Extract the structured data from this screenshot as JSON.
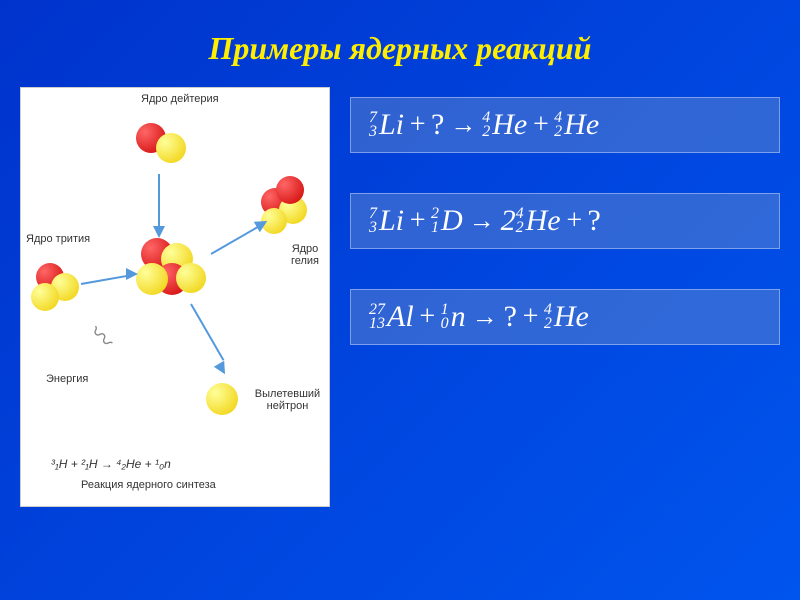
{
  "title": "Примеры ядерных реакций",
  "colors": {
    "background_start": "#0033cc",
    "background_end": "#0055ee",
    "title_color": "#ffee00",
    "eq_text": "#ffffff",
    "eq_box_bg": "rgba(120,150,200,0.4)",
    "diagram_bg": "#ffffff",
    "arrow_color": "#5599dd",
    "sphere_red": "#cc0000",
    "sphere_red_hl": "#ff6666",
    "sphere_yellow": "#eecc00",
    "sphere_yellow_hl": "#ffff99",
    "sphere_grey": "#888888"
  },
  "diagram": {
    "labels": {
      "deuterium": "Ядро\nдейтерия",
      "tritium": "Ядро\nтрития",
      "helium": "Ядро\nгелия",
      "energy": "Энергия",
      "neutron": "Вылетевший\nнейтрон"
    },
    "footer_equation": "³₁H + ²₁H → ⁴₂He + ¹₀n",
    "footer_title": "Реакция ядерного синтеза"
  },
  "equations": [
    {
      "reactants": [
        {
          "A": "7",
          "Z": "3",
          "sym": "Li"
        },
        {
          "unknown": true
        }
      ],
      "products": [
        {
          "A": "4",
          "Z": "2",
          "sym": "He"
        },
        {
          "A": "4",
          "Z": "2",
          "sym": "He"
        }
      ]
    },
    {
      "reactants": [
        {
          "A": "7",
          "Z": "3",
          "sym": "Li"
        },
        {
          "A": "2",
          "Z": "1",
          "sym": "D"
        }
      ],
      "products": [
        {
          "coef": "2",
          "A": "4",
          "Z": "2",
          "sym": "He"
        },
        {
          "unknown": true
        }
      ]
    },
    {
      "reactants": [
        {
          "A": "27",
          "Z": "13",
          "sym": "Al"
        },
        {
          "A": "1",
          "Z": "0",
          "sym": "n"
        }
      ],
      "products": [
        {
          "unknown": true
        },
        {
          "A": "4",
          "Z": "2",
          "sym": "He"
        }
      ]
    }
  ]
}
